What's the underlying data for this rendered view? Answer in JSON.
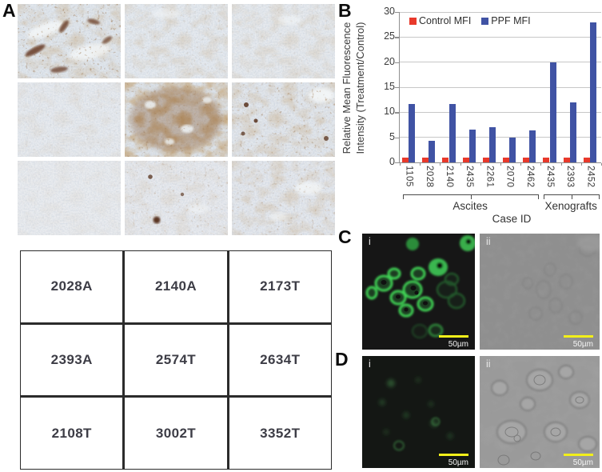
{
  "panels": {
    "a": {
      "label": "A"
    },
    "b": {
      "label": "B"
    },
    "c": {
      "label": "C",
      "i": "i",
      "ii": "ii",
      "scale_i": "50µm",
      "scale_ii": "50µm"
    },
    "d": {
      "label": "D",
      "i": "i",
      "ii": "ii",
      "scale_i": "50µm",
      "scale_ii": "50µm"
    }
  },
  "chart_data": {
    "type": "bar",
    "title": "",
    "ylabel_line1": "Relative Mean Fluorescence",
    "ylabel_line2": "Intensity (Treatment/Control)",
    "xlabel": "Case ID",
    "ylim": [
      0,
      30
    ],
    "ytick_step": 5,
    "grid": true,
    "legend_position": "top-inside",
    "categories": [
      "1105",
      "2028",
      "2140",
      "2435",
      "2261",
      "2070",
      "2462",
      "2435",
      "2393",
      "2452"
    ],
    "series": [
      {
        "name": "Control MFI",
        "color": "#e8392b",
        "values": [
          1,
          1,
          1,
          1,
          1,
          1,
          1,
          1,
          1,
          1
        ]
      },
      {
        "name": "PPF MFI",
        "color": "#4053a4",
        "values": [
          11.7,
          4.3,
          11.6,
          6.5,
          7,
          5,
          6.4,
          20,
          12,
          28
        ]
      }
    ],
    "groups": [
      {
        "label": "Ascites",
        "span": [
          0,
          6
        ]
      },
      {
        "label": "Xenografts",
        "span": [
          7,
          9
        ]
      }
    ]
  },
  "table": {
    "rows": [
      [
        "2028A",
        "2140A",
        "2173T"
      ],
      [
        "2393A",
        "2574T",
        "2634T"
      ],
      [
        "2108T",
        "3002T",
        "3352T"
      ]
    ]
  }
}
